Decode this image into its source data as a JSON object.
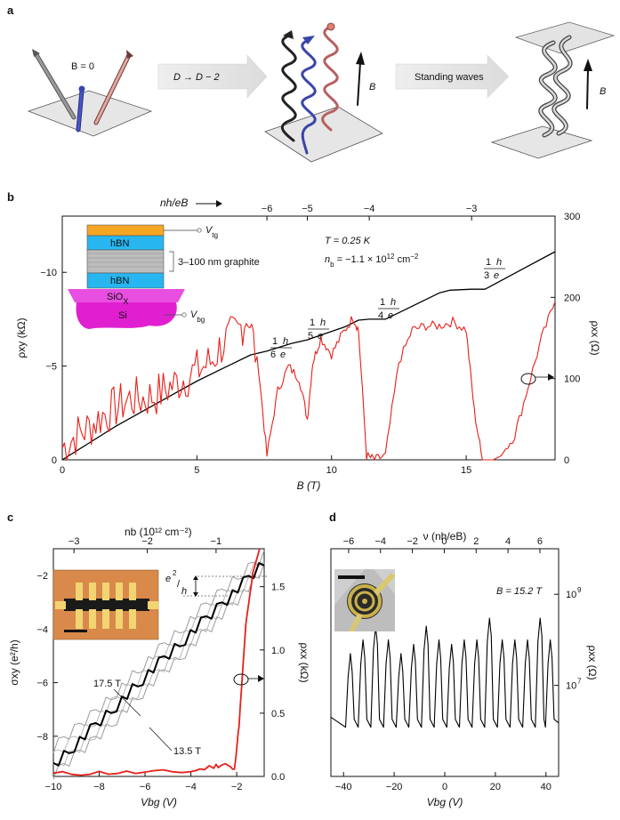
{
  "panel_labels": {
    "a": "a",
    "b": "b",
    "c": "c",
    "d": "d"
  },
  "panel_a": {
    "b_zero": "B = 0",
    "arrow1": "D → D − 2",
    "arrow2": "Standing waves",
    "b_label_1": "B",
    "b_label_2": "B"
  },
  "panel_b": {
    "inset": {
      "hbn_top": "hBN",
      "hbn_bottom": "hBN",
      "graphite": "3–100 nm graphite",
      "sio": "SiO",
      "sio_sub": "X",
      "si": "Si",
      "vtg": "V",
      "vtg_sub": "tg",
      "vbg": "V",
      "vbg_sub": "bg"
    },
    "temp": "T = 0.25 K",
    "density_main": "n",
    "density_sub": "b",
    "density_value": " = −1.1 × 10",
    "density_exp": "12",
    "density_unit": " cm",
    "density_unit_exp": "−2",
    "plateau_labels": [
      {
        "num": "1",
        "den": "6",
        "h": "h",
        "e": "e"
      },
      {
        "num": "1",
        "den": "5",
        "h": "h",
        "e": "e"
      },
      {
        "num": "1",
        "den": "4",
        "h": "h",
        "e": "e"
      },
      {
        "num": "1",
        "den": "3",
        "h": "h",
        "e": "e"
      }
    ],
    "top_axis_label": "nh/eB"
  },
  "panel_c": {
    "annot_175": "17.5 T",
    "annot_135": "13.5 T",
    "step_label": "e",
    "step_label_den": "h"
  },
  "panel_d": {
    "field": "B = 15.2 T"
  },
  "chart_data": [
    {
      "id": "b",
      "type": "line",
      "xlabel": "B (T)",
      "x_ticks": [
        0,
        5,
        10,
        15
      ],
      "xlim": [
        0,
        18.3
      ],
      "ylabel_left": "ρxy (kΩ)",
      "ylim_left": [
        0,
        -13
      ],
      "y_ticks_left": [
        0,
        -5,
        -10
      ],
      "ylabel_right": "ρxx (Ω)",
      "ylim_right": [
        0,
        300
      ],
      "y_ticks_right": [
        0,
        100,
        200,
        300
      ],
      "top_axis": {
        "label": "nh/eB",
        "ticks": [
          -6,
          -5,
          -4,
          -3
        ],
        "tick_B": [
          7.6,
          9.1,
          11.4,
          15.2
        ]
      },
      "series": [
        {
          "color": "#000000",
          "x": [
            0,
            1,
            2,
            3,
            4,
            5,
            6,
            7,
            7.6,
            8.5,
            9.1,
            9.5,
            10.5,
            11.0,
            11.4,
            12.0,
            13.0,
            14.0,
            14.4,
            15.2,
            15.7,
            17.0,
            18.3
          ],
          "y": [
            0,
            -0.9,
            -1.8,
            -2.6,
            -3.4,
            -4.2,
            -4.9,
            -5.6,
            -5.8,
            -6.2,
            -6.4,
            -6.6,
            -7.1,
            -7.45,
            -7.5,
            -7.5,
            -8.2,
            -8.9,
            -9.05,
            -9.1,
            -9.1,
            -10.1,
            -11.1
          ]
        },
        {
          "color": "#e8201a",
          "x": [
            0,
            0.5,
            1,
            1.5,
            2,
            2.5,
            3,
            3.5,
            4,
            4.5,
            5,
            5.5,
            6,
            6.5,
            6.9,
            7.3,
            7.6,
            8.0,
            8.4,
            8.8,
            9.1,
            9.3,
            9.6,
            10.0,
            10.4,
            10.8,
            11.0,
            11.3,
            11.6,
            12.0,
            12.5,
            13.0,
            13.5,
            14.0,
            14.5,
            15.0,
            15.3,
            15.6,
            16.0,
            16.3,
            16.8,
            17.3,
            17.8,
            18.3
          ],
          "y": [
            15,
            30,
            40,
            55,
            65,
            75,
            75,
            80,
            90,
            100,
            110,
            120,
            145,
            155,
            180,
            110,
            5,
            85,
            115,
            100,
            50,
            120,
            150,
            130,
            155,
            175,
            160,
            5,
            0,
            5,
            120,
            160,
            165,
            165,
            170,
            160,
            60,
            0,
            0,
            5,
            30,
            90,
            150,
            195
          ]
        }
      ]
    },
    {
      "id": "c",
      "type": "line",
      "xlabel": "Vbg (V)",
      "x_ticks": [
        -10,
        -8,
        -6,
        -4,
        -2
      ],
      "xlim": [
        -10,
        -0.8
      ],
      "ylabel_left": "σxy (e²/h)",
      "ylim_left": [
        -9.5,
        -1
      ],
      "y_ticks_left": [
        -8,
        -6,
        -4,
        -2
      ],
      "ylabel_right": "ρxx (kΩ)",
      "ylim_right": [
        0,
        1.8
      ],
      "y_ticks_right": [
        0.0,
        0.5,
        1.0,
        1.5
      ],
      "top_axis": {
        "label": "nb (10^12 cm^-2)",
        "ticks": [
          -3,
          -2,
          -1
        ]
      },
      "series": [
        {
          "name": "17.5 T",
          "color": "#9a9a9a",
          "x": [
            -10,
            -8,
            -6,
            -4,
            -2,
            -0.8
          ],
          "y": [
            -8.4,
            -6.9,
            -5.2,
            -3.6,
            -2.0,
            -1.2
          ]
        },
        {
          "name": "13.5 T",
          "color": "#9a9a9a",
          "x": [
            -10,
            -8,
            -6,
            -4,
            -2,
            -0.8
          ],
          "y": [
            -9.4,
            -7.9,
            -6.2,
            -4.6,
            -2.9,
            -1.6
          ]
        },
        {
          "color": "#000000",
          "x": [
            -10,
            -8,
            -6,
            -4,
            -2,
            -0.8
          ],
          "y": [
            -9.0,
            -7.4,
            -5.7,
            -4.1,
            -2.5,
            -1.4
          ]
        },
        {
          "color": "#e8201a",
          "x": [
            -10,
            -8,
            -6,
            -4,
            -3,
            -2.5,
            -2.1,
            -1.9,
            -1.6,
            -1.3,
            -1.0
          ],
          "y": [
            0.02,
            0.03,
            0.03,
            0.04,
            0.08,
            0.1,
            0.05,
            0.4,
            1.2,
            1.6,
            1.8
          ]
        }
      ]
    },
    {
      "id": "d",
      "type": "line",
      "xlabel": "Vbg (V)",
      "x_ticks": [
        -40,
        -20,
        0,
        20,
        40
      ],
      "xlim": [
        -45,
        45
      ],
      "ylabel_right": "ρxx (Ω)",
      "y_scale": "log",
      "y_ticks_right": [
        "10^7",
        "10^9"
      ],
      "top_axis": {
        "label": "ν (nh/eB)",
        "ticks": [
          -6,
          -4,
          -2,
          0,
          2,
          4,
          6
        ]
      },
      "series": [
        {
          "color": "#000000",
          "peaks_x": [
            -37,
            -32,
            -27,
            -22,
            -17,
            -12,
            -7,
            -2,
            3,
            8,
            13,
            18,
            23,
            28,
            33,
            38,
            42
          ],
          "peaks_y": [
            50000000.0,
            100000000.0,
            200000000.0,
            100000000.0,
            50000000.0,
            80000000.0,
            200000000.0,
            100000000.0,
            80000000.0,
            100000000.0,
            100000000.0,
            300000000.0,
            100000000.0,
            100000000.0,
            100000000.0,
            300000000.0,
            100000000.0
          ]
        }
      ]
    }
  ]
}
